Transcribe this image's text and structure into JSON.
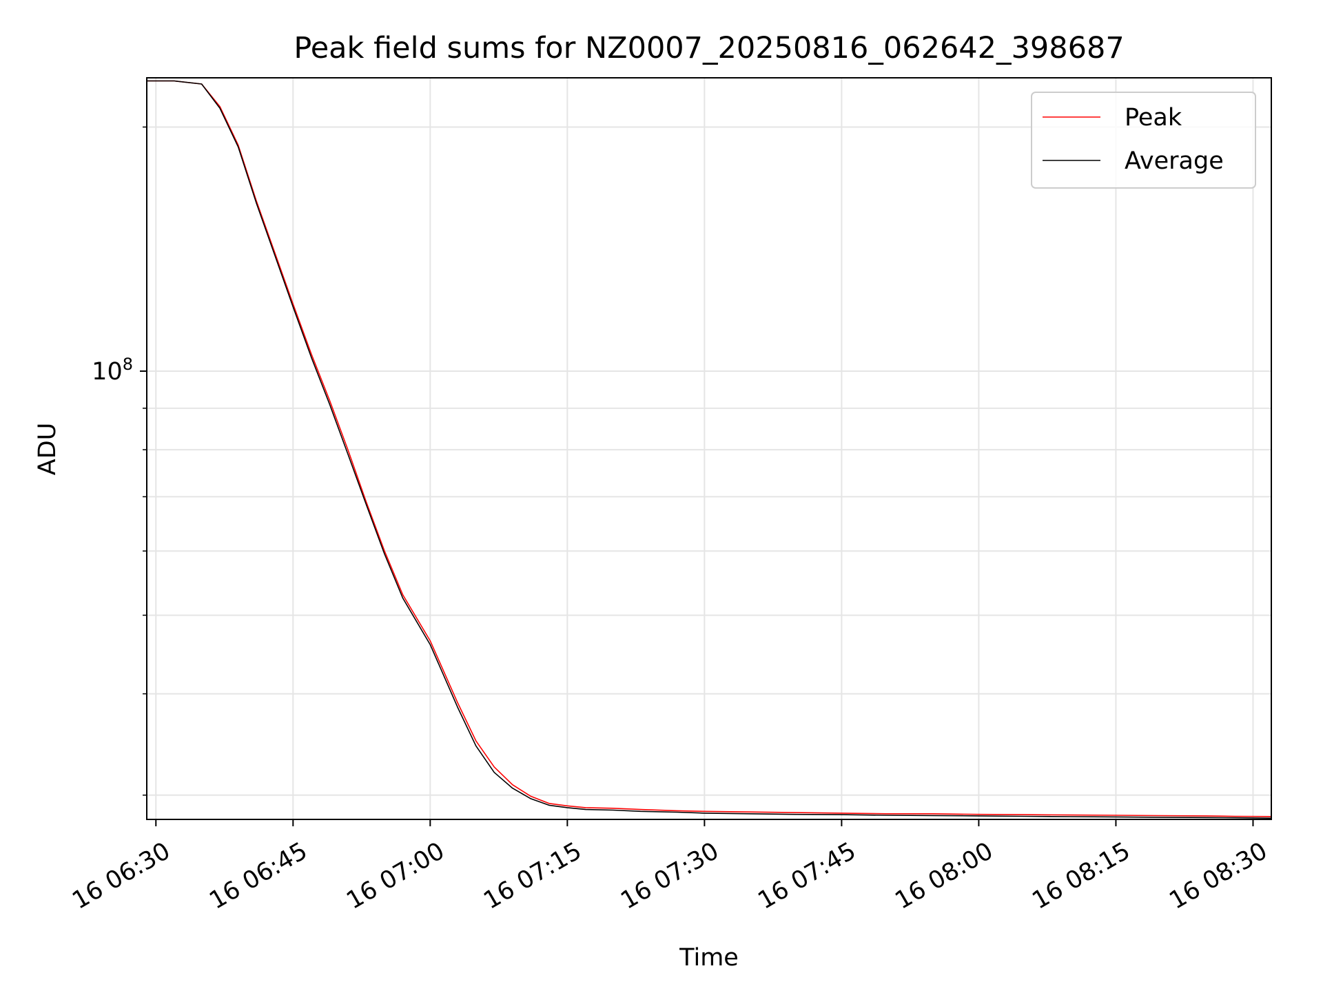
{
  "chart_data": {
    "type": "line",
    "title": "Peak field sums for NZ0007_20250816_062642_398687",
    "xlabel": "Time",
    "ylabel": "ADU",
    "y_scale": "log",
    "grid": true,
    "legend_placement": "top-right",
    "xlim": [
      "2025-08-16 06:29:00",
      "2025-08-16 08:32:00"
    ],
    "ylim": [
      28000000,
      230000000
    ],
    "x_ticks": [
      {
        "time": "2025-08-16 06:30",
        "label": "16 06:30"
      },
      {
        "time": "2025-08-16 06:45",
        "label": "16 06:45"
      },
      {
        "time": "2025-08-16 07:00",
        "label": "16 07:00"
      },
      {
        "time": "2025-08-16 07:15",
        "label": "16 07:15"
      },
      {
        "time": "2025-08-16 07:30",
        "label": "16 07:30"
      },
      {
        "time": "2025-08-16 07:45",
        "label": "16 07:45"
      },
      {
        "time": "2025-08-16 08:00",
        "label": "16 08:00"
      },
      {
        "time": "2025-08-16 08:15",
        "label": "16 08:15"
      },
      {
        "time": "2025-08-16 08:30",
        "label": "16 08:30"
      }
    ],
    "y_major_ticks": [
      {
        "value": 100000000,
        "label_base": "10",
        "label_exp": "8"
      }
    ],
    "y_minor_ticks": [
      30000000,
      40000000,
      50000000,
      60000000,
      70000000,
      80000000,
      90000000,
      200000000
    ],
    "series": [
      {
        "name": "Peak",
        "color": "#ff0000",
        "x": [
          "2025-08-16 06:29:00",
          "2025-08-16 06:32:00",
          "2025-08-16 06:35:00",
          "2025-08-16 06:37:00",
          "2025-08-16 06:39:00",
          "2025-08-16 06:41:00",
          "2025-08-16 06:43:00",
          "2025-08-16 06:45:00",
          "2025-08-16 06:47:00",
          "2025-08-16 06:49:00",
          "2025-08-16 06:51:00",
          "2025-08-16 06:53:00",
          "2025-08-16 06:55:00",
          "2025-08-16 06:57:00",
          "2025-08-16 07:00:00",
          "2025-08-16 07:03:00",
          "2025-08-16 07:05:00",
          "2025-08-16 07:07:00",
          "2025-08-16 07:09:00",
          "2025-08-16 07:11:00",
          "2025-08-16 07:13:00",
          "2025-08-16 07:15:00",
          "2025-08-16 07:17:00",
          "2025-08-16 07:20:00",
          "2025-08-16 07:23:00",
          "2025-08-16 07:27:00",
          "2025-08-16 07:30:00",
          "2025-08-16 07:35:00",
          "2025-08-16 07:40:00",
          "2025-08-16 07:45:00",
          "2025-08-16 07:50:00",
          "2025-08-16 07:55:00",
          "2025-08-16 08:00:00",
          "2025-08-16 08:05:00",
          "2025-08-16 08:10:00",
          "2025-08-16 08:15:00",
          "2025-08-16 08:20:00",
          "2025-08-16 08:25:00",
          "2025-08-16 08:28:00",
          "2025-08-16 08:32:00"
        ],
        "values": [
          228000000,
          228000000,
          226000000,
          212000000,
          190000000,
          162000000,
          140000000,
          121000000,
          105000000,
          92000000,
          80000000,
          69000000,
          60000000,
          53000000,
          46500000,
          39000000,
          35000000,
          32500000,
          30900000,
          29900000,
          29300000,
          29100000,
          28950000,
          28900000,
          28800000,
          28700000,
          28650000,
          28600000,
          28550000,
          28500000,
          28450000,
          28450000,
          28400000,
          28380000,
          28350000,
          28330000,
          28300000,
          28280000,
          28250000,
          28230000
        ]
      },
      {
        "name": "Average",
        "color": "#000000",
        "x": [
          "2025-08-16 06:29:00",
          "2025-08-16 06:32:00",
          "2025-08-16 06:35:00",
          "2025-08-16 06:37:00",
          "2025-08-16 06:39:00",
          "2025-08-16 06:41:00",
          "2025-08-16 06:43:00",
          "2025-08-16 06:45:00",
          "2025-08-16 06:47:00",
          "2025-08-16 06:49:00",
          "2025-08-16 06:51:00",
          "2025-08-16 06:53:00",
          "2025-08-16 06:55:00",
          "2025-08-16 06:57:00",
          "2025-08-16 07:00:00",
          "2025-08-16 07:03:00",
          "2025-08-16 07:05:00",
          "2025-08-16 07:07:00",
          "2025-08-16 07:09:00",
          "2025-08-16 07:11:00",
          "2025-08-16 07:13:00",
          "2025-08-16 07:15:00",
          "2025-08-16 07:17:00",
          "2025-08-16 07:20:00",
          "2025-08-16 07:23:00",
          "2025-08-16 07:27:00",
          "2025-08-16 07:30:00",
          "2025-08-16 07:35:00",
          "2025-08-16 07:40:00",
          "2025-08-16 07:45:00",
          "2025-08-16 07:50:00",
          "2025-08-16 07:55:00",
          "2025-08-16 08:00:00",
          "2025-08-16 08:05:00",
          "2025-08-16 08:10:00",
          "2025-08-16 08:15:00",
          "2025-08-16 08:20:00",
          "2025-08-16 08:25:00",
          "2025-08-16 08:28:00",
          "2025-08-16 08:32:00"
        ],
        "values": [
          228000000,
          228000000,
          226000000,
          211000000,
          189000000,
          161000000,
          139000000,
          120000000,
          104000000,
          91000000,
          79000000,
          68500000,
          59500000,
          52500000,
          46000000,
          38500000,
          34500000,
          32000000,
          30600000,
          29700000,
          29150000,
          28950000,
          28800000,
          28750000,
          28650000,
          28580000,
          28500000,
          28450000,
          28400000,
          28380000,
          28330000,
          28310000,
          28280000,
          28250000,
          28220000,
          28200000,
          28170000,
          28150000,
          28130000,
          28100000
        ]
      }
    ]
  }
}
